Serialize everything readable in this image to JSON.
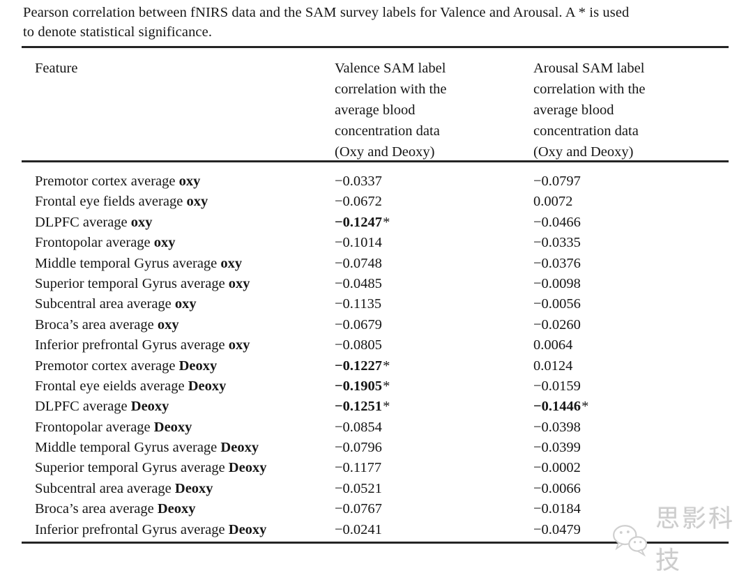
{
  "caption": {
    "line1": "Pearson correlation between fNIRS data and the SAM survey labels for Valence and Arousal. A * is used",
    "line2": "to denote statistical significance."
  },
  "table": {
    "star": "*",
    "columns": {
      "feature": "Feature",
      "valence_lines": [
        "Valence SAM label",
        "correlation with the",
        "average blood",
        "concentration data",
        "(Oxy and Deoxy)"
      ],
      "arousal_lines": [
        "Arousal SAM label",
        "correlation with the",
        "average blood",
        "concentration data",
        "(Oxy and Deoxy)"
      ]
    },
    "rows": [
      {
        "feature": "Premotor cortex average",
        "modifier": "oxy",
        "valence": "−0.0337",
        "valence_bold": false,
        "valence_star": false,
        "arousal": "−0.0797",
        "arousal_bold": false,
        "arousal_star": false
      },
      {
        "feature": "Frontal eye fields average",
        "modifier": "oxy",
        "valence": "−0.0672",
        "valence_bold": false,
        "valence_star": false,
        "arousal": "0.0072",
        "arousal_bold": false,
        "arousal_star": false
      },
      {
        "feature": "DLPFC average",
        "modifier": "oxy",
        "valence": "−0.1247",
        "valence_bold": true,
        "valence_star": true,
        "arousal": "−0.0466",
        "arousal_bold": false,
        "arousal_star": false
      },
      {
        "feature": "Frontopolar average",
        "modifier": "oxy",
        "valence": "−0.1014",
        "valence_bold": false,
        "valence_star": false,
        "arousal": "−0.0335",
        "arousal_bold": false,
        "arousal_star": false
      },
      {
        "feature": "Middle temporal Gyrus average",
        "modifier": "oxy",
        "valence": "−0.0748",
        "valence_bold": false,
        "valence_star": false,
        "arousal": "−0.0376",
        "arousal_bold": false,
        "arousal_star": false
      },
      {
        "feature": "Superior temporal Gyrus average",
        "modifier": "oxy",
        "valence": "−0.0485",
        "valence_bold": false,
        "valence_star": false,
        "arousal": "−0.0098",
        "arousal_bold": false,
        "arousal_star": false
      },
      {
        "feature": "Subcentral area average",
        "modifier": "oxy",
        "valence": "−0.1135",
        "valence_bold": false,
        "valence_star": false,
        "arousal": "−0.0056",
        "arousal_bold": false,
        "arousal_star": false
      },
      {
        "feature": "Broca’s area average",
        "modifier": "oxy",
        "valence": "−0.0679",
        "valence_bold": false,
        "valence_star": false,
        "arousal": "−0.0260",
        "arousal_bold": false,
        "arousal_star": false
      },
      {
        "feature": "Inferior prefrontal Gyrus average",
        "modifier": "oxy",
        "valence": "−0.0805",
        "valence_bold": false,
        "valence_star": false,
        "arousal": "0.0064",
        "arousal_bold": false,
        "arousal_star": false
      },
      {
        "feature": "Premotor cortex average",
        "modifier": "Deoxy",
        "valence": "−0.1227",
        "valence_bold": true,
        "valence_star": true,
        "arousal": "0.0124",
        "arousal_bold": false,
        "arousal_star": false
      },
      {
        "feature": "Frontal eye eields average",
        "modifier": "Deoxy",
        "valence": "−0.1905",
        "valence_bold": true,
        "valence_star": true,
        "arousal": "−0.0159",
        "arousal_bold": false,
        "arousal_star": false
      },
      {
        "feature": "DLPFC average",
        "modifier": "Deoxy",
        "valence": "−0.1251",
        "valence_bold": true,
        "valence_star": true,
        "arousal": "−0.1446",
        "arousal_bold": true,
        "arousal_star": true
      },
      {
        "feature": "Frontopolar average",
        "modifier": "Deoxy",
        "valence": "−0.0854",
        "valence_bold": false,
        "valence_star": false,
        "arousal": "−0.0398",
        "arousal_bold": false,
        "arousal_star": false
      },
      {
        "feature": "Middle temporal Gyrus average",
        "modifier": "Deoxy",
        "valence": "−0.0796",
        "valence_bold": false,
        "valence_star": false,
        "arousal": "−0.0399",
        "arousal_bold": false,
        "arousal_star": false
      },
      {
        "feature": "Superior temporal Gyrus average",
        "modifier": "Deoxy",
        "valence": "−0.1177",
        "valence_bold": false,
        "valence_star": false,
        "arousal": "−0.0002",
        "arousal_bold": false,
        "arousal_star": false
      },
      {
        "feature": "Subcentral area average",
        "modifier": "Deoxy",
        "valence": "−0.0521",
        "valence_bold": false,
        "valence_star": false,
        "arousal": "−0.0066",
        "arousal_bold": false,
        "arousal_star": false
      },
      {
        "feature": "Broca’s area average",
        "modifier": "Deoxy",
        "valence": "−0.0767",
        "valence_bold": false,
        "valence_star": false,
        "arousal": "−0.0184",
        "arousal_bold": false,
        "arousal_star": false
      },
      {
        "feature": "Inferior prefrontal Gyrus average",
        "modifier": "Deoxy",
        "valence": "−0.0241",
        "valence_bold": false,
        "valence_star": false,
        "arousal": "−0.0479",
        "arousal_bold": false,
        "arousal_star": false
      }
    ]
  },
  "watermark": {
    "icon": "wechat-icon",
    "text": "思影科技",
    "color": "#cccccc"
  },
  "colors": {
    "background": "#ffffff",
    "text": "#161616",
    "rule": "#242424"
  }
}
